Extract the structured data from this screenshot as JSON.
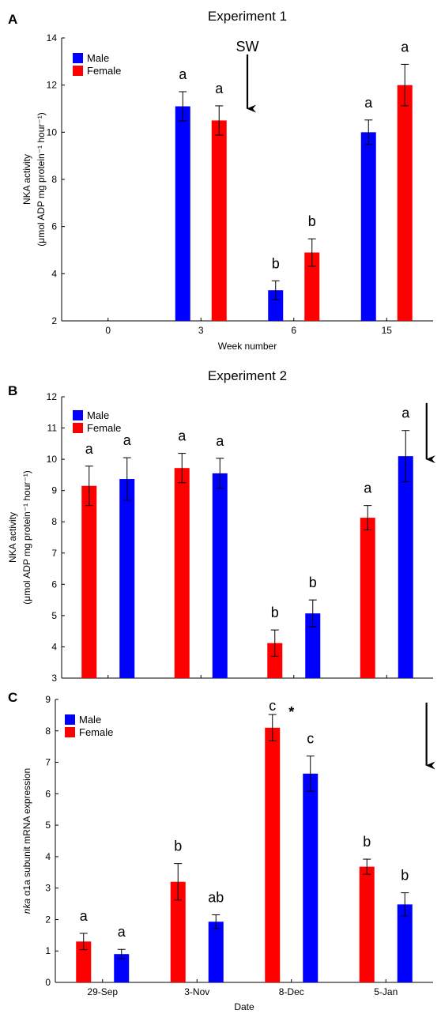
{
  "chart_data": [
    {
      "type": "bar",
      "panel_label": "A",
      "title": "Experiment 1",
      "xlabel": "Week number",
      "ylabel": "NKA activity",
      "ylabel_line2": "(μmol ADP mg protein⁻¹ hour⁻¹)",
      "categories": [
        "0",
        "3",
        "6",
        "15"
      ],
      "ylim": [
        2,
        14
      ],
      "yticks": [
        2,
        4,
        6,
        8,
        10,
        12,
        14
      ],
      "legend": "top-left",
      "grid": false,
      "series": [
        {
          "name": "Male",
          "color": "#0000ff",
          "values": [
            null,
            11.1,
            3.3,
            10.0
          ],
          "errors": [
            null,
            0.62,
            0.4,
            0.52
          ]
        },
        {
          "name": "Female",
          "color": "#ff0000",
          "values": [
            null,
            10.5,
            4.9,
            12.0
          ],
          "errors": [
            null,
            0.62,
            0.58,
            0.88
          ]
        }
      ],
      "significance": [
        {
          "category": "3",
          "series": "Male",
          "label": "a"
        },
        {
          "category": "3",
          "series": "Female",
          "label": "a"
        },
        {
          "category": "6",
          "series": "Male",
          "label": "b"
        },
        {
          "category": "6",
          "series": "Female",
          "label": "b"
        },
        {
          "category": "15",
          "series": "Male",
          "label": "a"
        },
        {
          "category": "15",
          "series": "Female",
          "label": "a"
        }
      ],
      "annotations": [
        {
          "text": "SW",
          "arrow": "down",
          "between": [
            "3",
            "6"
          ],
          "y_from": 13.3,
          "y_to": 11.0
        }
      ]
    },
    {
      "type": "bar",
      "panel_label": "B",
      "title": "Experiment 2",
      "xlabel": "",
      "ylabel": "NKA activity",
      "ylabel_line2": "(μmol ADP mg protein⁻¹ hour⁻¹)",
      "categories": [
        "29-Sep",
        "3-Nov",
        "8-Dec",
        "5-Jan"
      ],
      "show_xticklabels": false,
      "ylim": [
        3,
        12
      ],
      "yticks": [
        3,
        4,
        5,
        6,
        7,
        8,
        9,
        10,
        11,
        12
      ],
      "legend": "top-left",
      "grid": false,
      "series": [
        {
          "name": "Female",
          "color": "#ff0000",
          "values": [
            9.15,
            9.72,
            4.12,
            8.13
          ],
          "errors": [
            0.63,
            0.47,
            0.42,
            0.39
          ]
        },
        {
          "name": "Male",
          "color": "#0000ff",
          "values": [
            9.37,
            9.55,
            5.07,
            10.1
          ],
          "errors": [
            0.68,
            0.48,
            0.43,
            0.82
          ]
        }
      ],
      "legend_order": [
        "Male",
        "Female"
      ],
      "significance": [
        {
          "category": "29-Sep",
          "series": "Female",
          "label": "a"
        },
        {
          "category": "29-Sep",
          "series": "Male",
          "label": "a"
        },
        {
          "category": "3-Nov",
          "series": "Female",
          "label": "a"
        },
        {
          "category": "3-Nov",
          "series": "Male",
          "label": "a"
        },
        {
          "category": "8-Dec",
          "series": "Female",
          "label": "b"
        },
        {
          "category": "8-Dec",
          "series": "Male",
          "label": "b"
        },
        {
          "category": "5-Jan",
          "series": "Female",
          "label": "a"
        },
        {
          "category": "5-Jan",
          "series": "Male",
          "label": "a"
        }
      ],
      "annotations": [
        {
          "text": "",
          "arrow": "down",
          "after": "5-Jan",
          "y_from": 11.8,
          "y_to": 10.0
        }
      ]
    },
    {
      "type": "bar",
      "panel_label": "C",
      "title": "",
      "xlabel": "Date",
      "ylabel_italic_prefix": "nka",
      "ylabel": "α1a subunit mRNA expression",
      "categories": [
        "29-Sep",
        "3-Nov",
        "8-Dec",
        "5-Jan"
      ],
      "ylim": [
        0,
        9
      ],
      "yticks": [
        0,
        1,
        2,
        3,
        4,
        5,
        6,
        7,
        8,
        9
      ],
      "legend": "top-left",
      "grid": false,
      "series": [
        {
          "name": "Female",
          "color": "#ff0000",
          "values": [
            1.3,
            3.2,
            8.1,
            3.68
          ],
          "errors": [
            0.26,
            0.58,
            0.42,
            0.24
          ]
        },
        {
          "name": "Male",
          "color": "#0000ff",
          "values": [
            0.9,
            1.93,
            6.64,
            2.48
          ],
          "errors": [
            0.15,
            0.22,
            0.56,
            0.37
          ]
        }
      ],
      "legend_order": [
        "Male",
        "Female"
      ],
      "significance": [
        {
          "category": "29-Sep",
          "series": "Female",
          "label": "a"
        },
        {
          "category": "29-Sep",
          "series": "Male",
          "label": "a"
        },
        {
          "category": "3-Nov",
          "series": "Female",
          "label": "b"
        },
        {
          "category": "3-Nov",
          "series": "Male",
          "label": "ab"
        },
        {
          "category": "8-Dec",
          "series": "Female",
          "label": "c"
        },
        {
          "category": "8-Dec",
          "series": "Male",
          "label": "c"
        },
        {
          "category": "5-Jan",
          "series": "Female",
          "label": "b"
        },
        {
          "category": "5-Jan",
          "series": "Male",
          "label": "b"
        }
      ],
      "annotations": [
        {
          "text": "*",
          "arrow": "none",
          "between_series": "8-Dec",
          "y": 8.45
        },
        {
          "text": "",
          "arrow": "down",
          "after": "5-Jan",
          "y_from": 8.9,
          "y_to": 6.9
        }
      ]
    }
  ]
}
